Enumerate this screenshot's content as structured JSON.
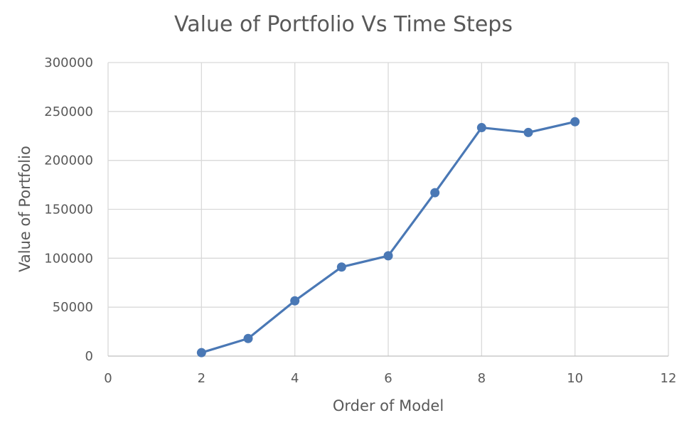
{
  "chart_data": {
    "type": "scatter",
    "title": "Value of Portfolio Vs Time Steps",
    "xlabel": "Order of Model",
    "ylabel": "Value of Portfolio",
    "xlim": [
      0,
      12
    ],
    "ylim": [
      0,
      300000
    ],
    "x_ticks": [
      "0",
      "2",
      "4",
      "6",
      "8",
      "10",
      "12"
    ],
    "y_ticks": [
      "0",
      "50000",
      "100000",
      "150000",
      "200000",
      "250000",
      "300000"
    ],
    "grid": true,
    "legend": "none",
    "series": [
      {
        "color": "#4a78b5",
        "marker": "circle",
        "line": true,
        "x": [
          2,
          3,
          4,
          5,
          6,
          7,
          8,
          9,
          10
        ],
        "y": [
          3500,
          18000,
          56500,
          91000,
          102500,
          167000,
          233500,
          228500,
          239500
        ]
      }
    ]
  }
}
